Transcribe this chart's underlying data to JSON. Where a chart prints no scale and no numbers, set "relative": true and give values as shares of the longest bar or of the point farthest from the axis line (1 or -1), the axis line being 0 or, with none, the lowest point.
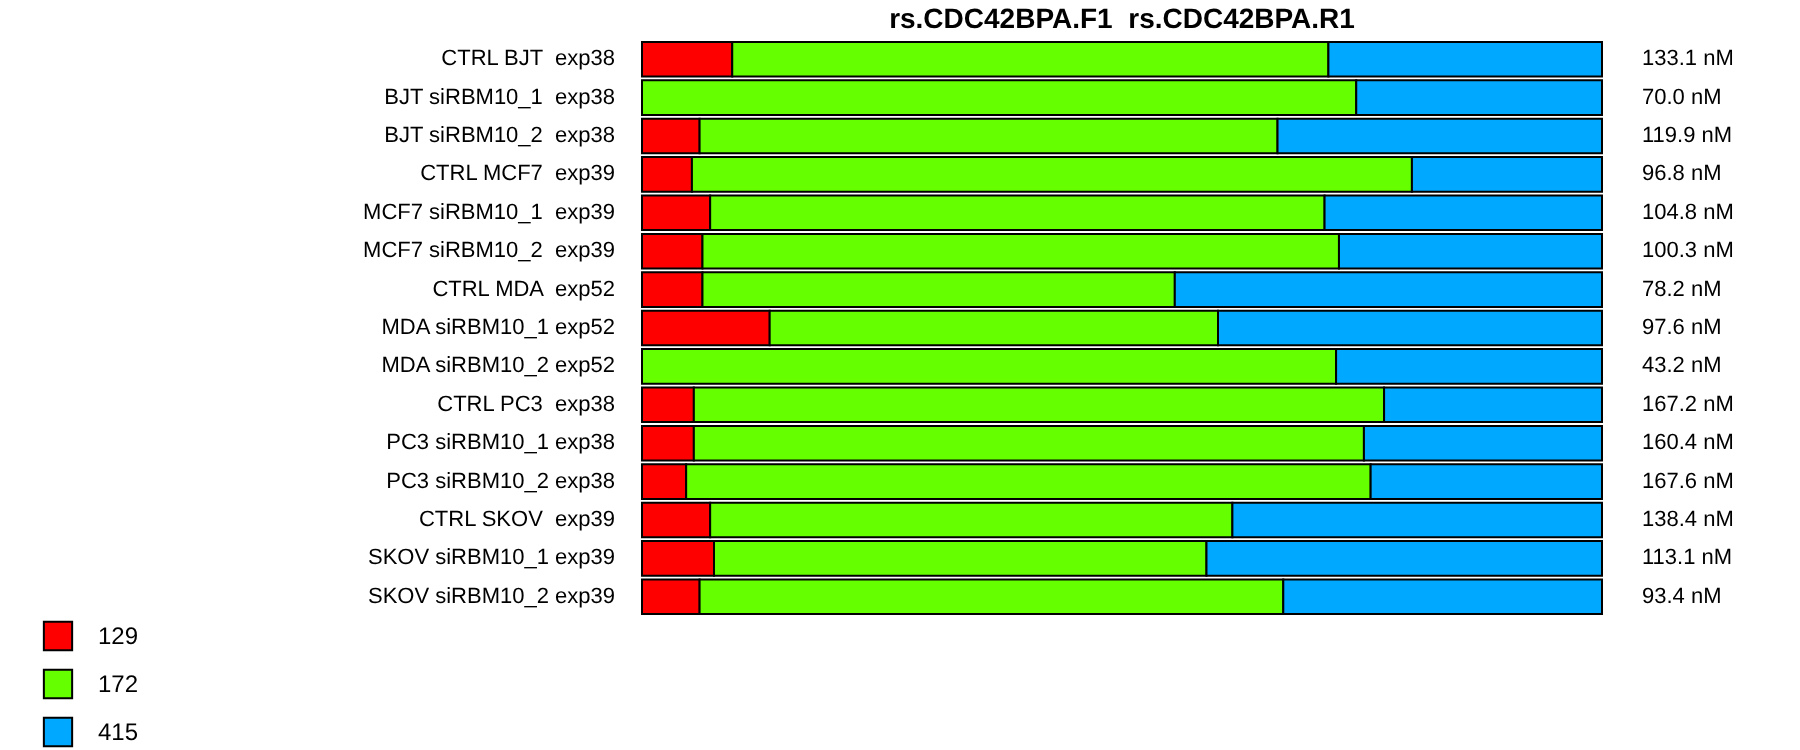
{
  "chart_data": {
    "type": "bar",
    "orientation": "horizontal",
    "stacked": true,
    "relative": true,
    "title": "rs.CDC42BPA.F1  rs.CDC42BPA.R1",
    "legend": "bottom left",
    "categories": [
      "CTRL BJT  exp38",
      "BJT siRBM10_1  exp38",
      "BJT siRBM10_2  exp38",
      "CTRL MCF7  exp39",
      "MCF7 siRBM10_1  exp39",
      "MCF7 siRBM10_2  exp39",
      "CTRL MDA  exp52",
      "MDA siRBM10_1 exp52",
      "MDA siRBM10_2 exp52",
      "CTRL PC3  exp38",
      "PC3 siRBM10_1 exp38",
      "PC3 siRBM10_2 exp38",
      "CTRL SKOV  exp39",
      "SKOV siRBM10_1 exp39",
      "SKOV siRBM10_2 exp39"
    ],
    "series": [
      {
        "name": "129",
        "color": "#ff0000",
        "values": [
          0.094,
          0,
          0.06,
          0.052,
          0.071,
          0.063,
          0.063,
          0.133,
          0,
          0.054,
          0.054,
          0.046,
          0.071,
          0.075,
          0.06
        ]
      },
      {
        "name": "172",
        "color": "#66ff00",
        "values": [
          0.621,
          0.744,
          0.602,
          0.75,
          0.64,
          0.663,
          0.492,
          0.467,
          0.723,
          0.719,
          0.698,
          0.713,
          0.544,
          0.513,
          0.608
        ]
      },
      {
        "name": "415",
        "color": "#00a8ff",
        "values": [
          0.285,
          0.256,
          0.338,
          0.198,
          0.289,
          0.274,
          0.445,
          0.4,
          0.277,
          0.227,
          0.248,
          0.241,
          0.385,
          0.412,
          0.332
        ]
      }
    ],
    "annotations": [
      "133.1 nM",
      "70.0 nM",
      "119.9 nM",
      "96.8 nM",
      "104.8 nM",
      "100.3 nM",
      "78.2 nM",
      "97.6 nM",
      "43.2 nM",
      "167.2 nM",
      "160.4 nM",
      "167.6 nM",
      "138.4 nM",
      "113.1 nM",
      "93.4 nM"
    ]
  }
}
